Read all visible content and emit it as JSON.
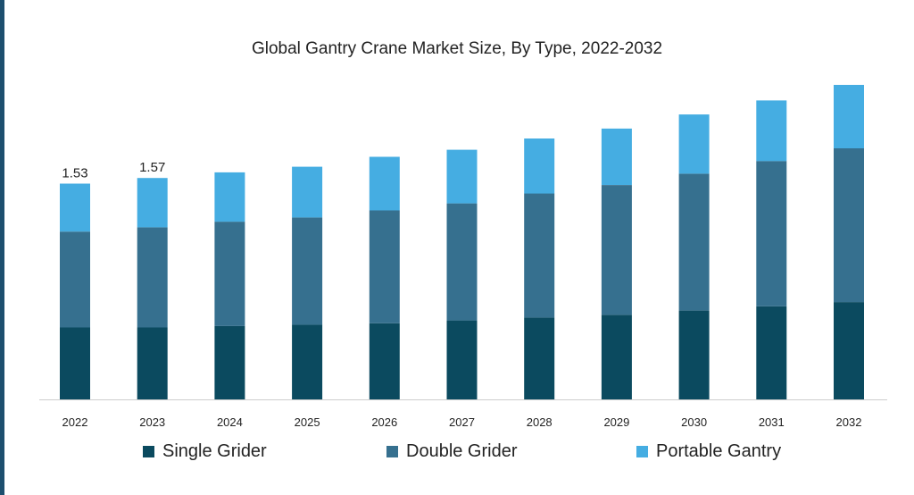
{
  "colors": {
    "single": "#0b4a5f",
    "double": "#36708f",
    "portable": "#45ade2",
    "axis": "#cccccc",
    "text": "#222222",
    "accent_bar": "#1d4f6e"
  },
  "chart_data": {
    "type": "bar",
    "stacked": true,
    "title": "Global Gantry Crane Market Size, By Type, 2022-2032",
    "xlabel": "",
    "ylabel": "",
    "categories": [
      "2022",
      "2023",
      "2024",
      "2025",
      "2026",
      "2027",
      "2028",
      "2029",
      "2030",
      "2031",
      "2032"
    ],
    "series": [
      {
        "name": "Single Grider",
        "values": [
          0.51,
          0.51,
          0.52,
          0.53,
          0.54,
          0.56,
          0.58,
          0.6,
          0.63,
          0.66,
          0.69
        ]
      },
      {
        "name": "Double Grider",
        "values": [
          0.68,
          0.71,
          0.74,
          0.76,
          0.8,
          0.83,
          0.88,
          0.92,
          0.97,
          1.03,
          1.09
        ]
      },
      {
        "name": "Portable Gantry",
        "values": [
          0.34,
          0.35,
          0.35,
          0.36,
          0.38,
          0.38,
          0.39,
          0.4,
          0.42,
          0.43,
          0.45
        ]
      }
    ],
    "totals_labels": [
      "1.53",
      "1.57"
    ],
    "ylim": [
      0,
      2.23
    ],
    "grid": false,
    "legend_position": "bottom"
  }
}
